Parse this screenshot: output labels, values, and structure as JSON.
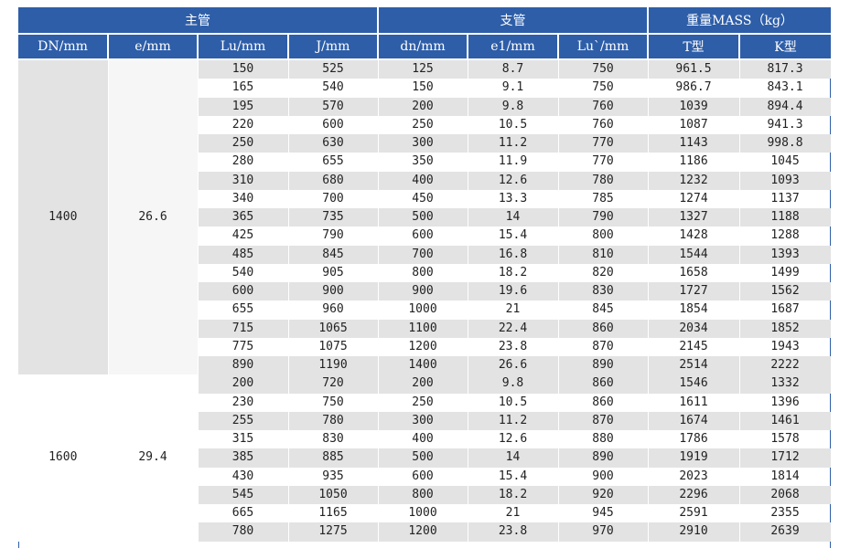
{
  "header": {
    "groups": [
      "主管",
      "支管",
      "重量MASS（kg）"
    ],
    "columns": [
      "DN/mm",
      "e/mm",
      "Lu/mm",
      "J/mm",
      "dn/mm",
      "e1/mm",
      "Lu`/mm",
      "T型",
      "K型"
    ]
  },
  "blocks": [
    {
      "dn": "1400",
      "e": "26.6",
      "rows": [
        [
          "150",
          "525",
          "125",
          "8.7",
          "750",
          "961.5",
          "817.3"
        ],
        [
          "165",
          "540",
          "150",
          "9.1",
          "750",
          "986.7",
          "843.1"
        ],
        [
          "195",
          "570",
          "200",
          "9.8",
          "760",
          "1039",
          "894.4"
        ],
        [
          "220",
          "600",
          "250",
          "10.5",
          "760",
          "1087",
          "941.3"
        ],
        [
          "250",
          "630",
          "300",
          "11.2",
          "770",
          "1143",
          "998.8"
        ],
        [
          "280",
          "655",
          "350",
          "11.9",
          "770",
          "1186",
          "1045"
        ],
        [
          "310",
          "680",
          "400",
          "12.6",
          "780",
          "1232",
          "1093"
        ],
        [
          "340",
          "700",
          "450",
          "13.3",
          "785",
          "1274",
          "1137"
        ],
        [
          "365",
          "735",
          "500",
          "14",
          "790",
          "1327",
          "1188"
        ],
        [
          "425",
          "790",
          "600",
          "15.4",
          "800",
          "1428",
          "1288"
        ],
        [
          "485",
          "845",
          "700",
          "16.8",
          "810",
          "1544",
          "1393"
        ],
        [
          "540",
          "905",
          "800",
          "18.2",
          "820",
          "1658",
          "1499"
        ],
        [
          "600",
          "900",
          "900",
          "19.6",
          "830",
          "1727",
          "1562"
        ],
        [
          "655",
          "960",
          "1000",
          "21",
          "845",
          "1854",
          "1687"
        ],
        [
          "715",
          "1065",
          "1100",
          "22.4",
          "860",
          "2034",
          "1852"
        ],
        [
          "775",
          "1075",
          "1200",
          "23.8",
          "870",
          "2145",
          "1943"
        ],
        [
          "890",
          "1190",
          "1400",
          "26.6",
          "890",
          "2514",
          "2222"
        ]
      ]
    },
    {
      "dn": "1600",
      "e": "29.4",
      "rows": [
        [
          "200",
          "720",
          "200",
          "9.8",
          "860",
          "1546",
          "1332"
        ],
        [
          "230",
          "750",
          "250",
          "10.5",
          "860",
          "1611",
          "1396"
        ],
        [
          "255",
          "780",
          "300",
          "11.2",
          "870",
          "1674",
          "1461"
        ],
        [
          "315",
          "830",
          "400",
          "12.6",
          "880",
          "1786",
          "1578"
        ],
        [
          "385",
          "885",
          "500",
          "14",
          "890",
          "1919",
          "1712"
        ],
        [
          "430",
          "935",
          "600",
          "15.4",
          "900",
          "2023",
          "1814"
        ],
        [
          "545",
          "1050",
          "800",
          "18.2",
          "920",
          "2296",
          "2068"
        ],
        [
          "665",
          "1165",
          "1000",
          "21",
          "945",
          "2591",
          "2355"
        ],
        [
          "780",
          "1275",
          "1200",
          "23.8",
          "970",
          "2910",
          "2639"
        ]
      ]
    }
  ]
}
